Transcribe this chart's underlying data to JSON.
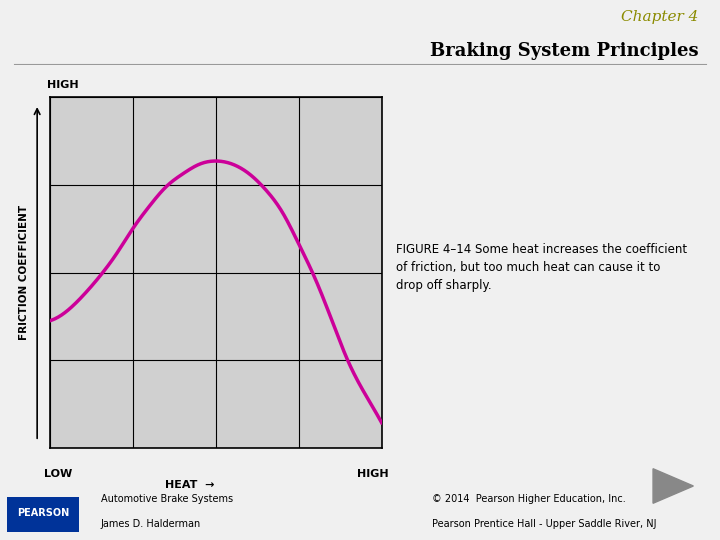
{
  "title_chapter": "Chapter 4",
  "title_main": "Braking System Principles",
  "chapter_color": "#8B8B00",
  "title_color": "#000000",
  "figure_caption": "FIGURE 4–14 Some heat increases the coefficient\nof friction, but too much heat can cause it to\ndrop off sharply.",
  "xlabel": "HEAT",
  "ylabel": "FRICTION COEFFICIENT",
  "x_low_label": "LOW",
  "x_high_label": "HIGH",
  "y_low_label": "LOW",
  "y_high_label": "HIGH",
  "curve_color": "#CC0099",
  "curve_x": [
    0.0,
    0.05,
    0.1,
    0.15,
    0.2,
    0.25,
    0.3,
    0.35,
    0.4,
    0.45,
    0.5,
    0.55,
    0.6,
    0.65,
    0.7,
    0.75,
    0.8,
    0.85,
    0.9,
    0.95,
    1.0
  ],
  "curve_y": [
    0.3,
    0.33,
    0.38,
    0.44,
    0.51,
    0.59,
    0.66,
    0.72,
    0.76,
    0.79,
    0.8,
    0.79,
    0.76,
    0.71,
    0.64,
    0.54,
    0.43,
    0.3,
    0.17,
    0.07,
    -0.02
  ],
  "grid_color": "#000000",
  "background_color": "#e8e8e8",
  "plot_bg_color": "#d0d0d0",
  "footer_text_left": "Automotive Brake Systems\nJames D. Halderman",
  "footer_copyright": "© 2014  Pearson Higher Education, Inc.\nPearson Prentice Hall - Upper Saddle River, NJ",
  "pearson_color": "#003399"
}
